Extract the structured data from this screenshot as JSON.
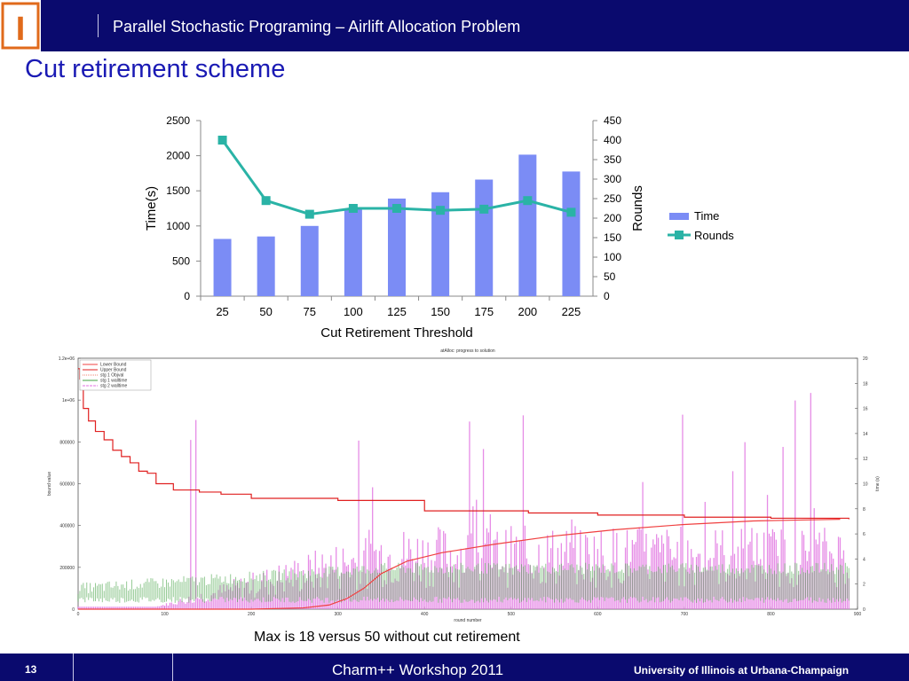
{
  "header": {
    "title": "Parallel Stochastic Programing – Airlift Allocation Problem",
    "logo_letter": "I"
  },
  "slide": {
    "title": "Cut retirement scheme",
    "caption": "Max is 18 versus 50 without cut retirement"
  },
  "footer": {
    "page_number": "13",
    "center": "Charm++ Workshop 2011",
    "right": "University of Illinois at Urbana-Champaign"
  },
  "colors": {
    "header_bg": "#0a0a6e",
    "title_blue": "#1a1ab4",
    "bar_blue": "#7b8cf5",
    "line_teal": "#2ab3a6",
    "logo_orange": "#e06a1b"
  },
  "chart_data": [
    {
      "type": "bar",
      "categories": [
        "25",
        "50",
        "75",
        "100",
        "125",
        "150",
        "175",
        "200",
        "225"
      ],
      "series": [
        {
          "name": "Time",
          "axis": "left",
          "type": "bar",
          "values": [
            815,
            850,
            1000,
            1240,
            1390,
            1480,
            1660,
            2015,
            1775
          ]
        },
        {
          "name": "Rounds",
          "axis": "right",
          "type": "line",
          "values": [
            400,
            245,
            210,
            225,
            225,
            220,
            223,
            245,
            215
          ]
        }
      ],
      "xlabel": "Cut Retirement Threshold",
      "ylabel": "Time(s)",
      "y2label": "Rounds",
      "ylim": [
        0,
        2500
      ],
      "yticks": [
        0,
        500,
        1000,
        1500,
        2000,
        2500
      ],
      "y2lim": [
        0,
        450
      ],
      "y2ticks": [
        0,
        50,
        100,
        150,
        200,
        250,
        300,
        350,
        400,
        450
      ],
      "legend_position": "right"
    },
    {
      "type": "line",
      "title": "atAlloc: progress to solution",
      "xlabel": "round number",
      "ylabel": "bound value",
      "y2label": "time (s)",
      "xlim": [
        0,
        900
      ],
      "xticks": [
        0,
        100,
        200,
        300,
        400,
        500,
        600,
        700,
        800,
        900
      ],
      "ylim": [
        0,
        1200000
      ],
      "ytick_labels": [
        "0",
        "200000",
        "400000",
        "600000",
        "800000",
        "1e+06",
        "1.2e+06"
      ],
      "y2lim": [
        0,
        20
      ],
      "y2ticks": [
        0,
        2,
        4,
        6,
        8,
        10,
        12,
        14,
        16,
        18,
        20
      ],
      "legend_position": "top-left",
      "series": [
        {
          "name": "Lower Bound",
          "color": "#f04040",
          "x": [
            0,
            100,
            200,
            260,
            290,
            310,
            330,
            350,
            380,
            420,
            480,
            550,
            620,
            700,
            780,
            880
          ],
          "y": [
            0,
            0,
            0,
            6000,
            20000,
            50000,
            100000,
            170000,
            230000,
            270000,
            310000,
            350000,
            380000,
            405000,
            422000,
            430000
          ]
        },
        {
          "name": "Upper Bound",
          "color": "#e02020",
          "x": [
            0,
            2,
            6,
            12,
            20,
            30,
            40,
            50,
            60,
            70,
            80,
            90,
            110,
            140,
            165,
            200,
            300,
            320,
            400,
            520,
            600,
            700,
            800,
            890
          ],
          "y": [
            1150000,
            1100000,
            960000,
            900000,
            850000,
            810000,
            760000,
            730000,
            700000,
            660000,
            650000,
            600000,
            570000,
            560000,
            550000,
            530000,
            520000,
            520000,
            470000,
            460000,
            450000,
            440000,
            435000,
            430000
          ]
        },
        {
          "name": "stg 1 Objval",
          "color": "#f08070",
          "style": "dotted"
        },
        {
          "name": "stg 1 walltime",
          "color": "#40a040",
          "axis": "right",
          "approx_range": [
            0.5,
            3.5
          ]
        },
        {
          "name": "stg 2 walltime",
          "color": "#e070e0",
          "axis": "right",
          "approx_max": 18,
          "style": "dashed"
        }
      ]
    }
  ]
}
